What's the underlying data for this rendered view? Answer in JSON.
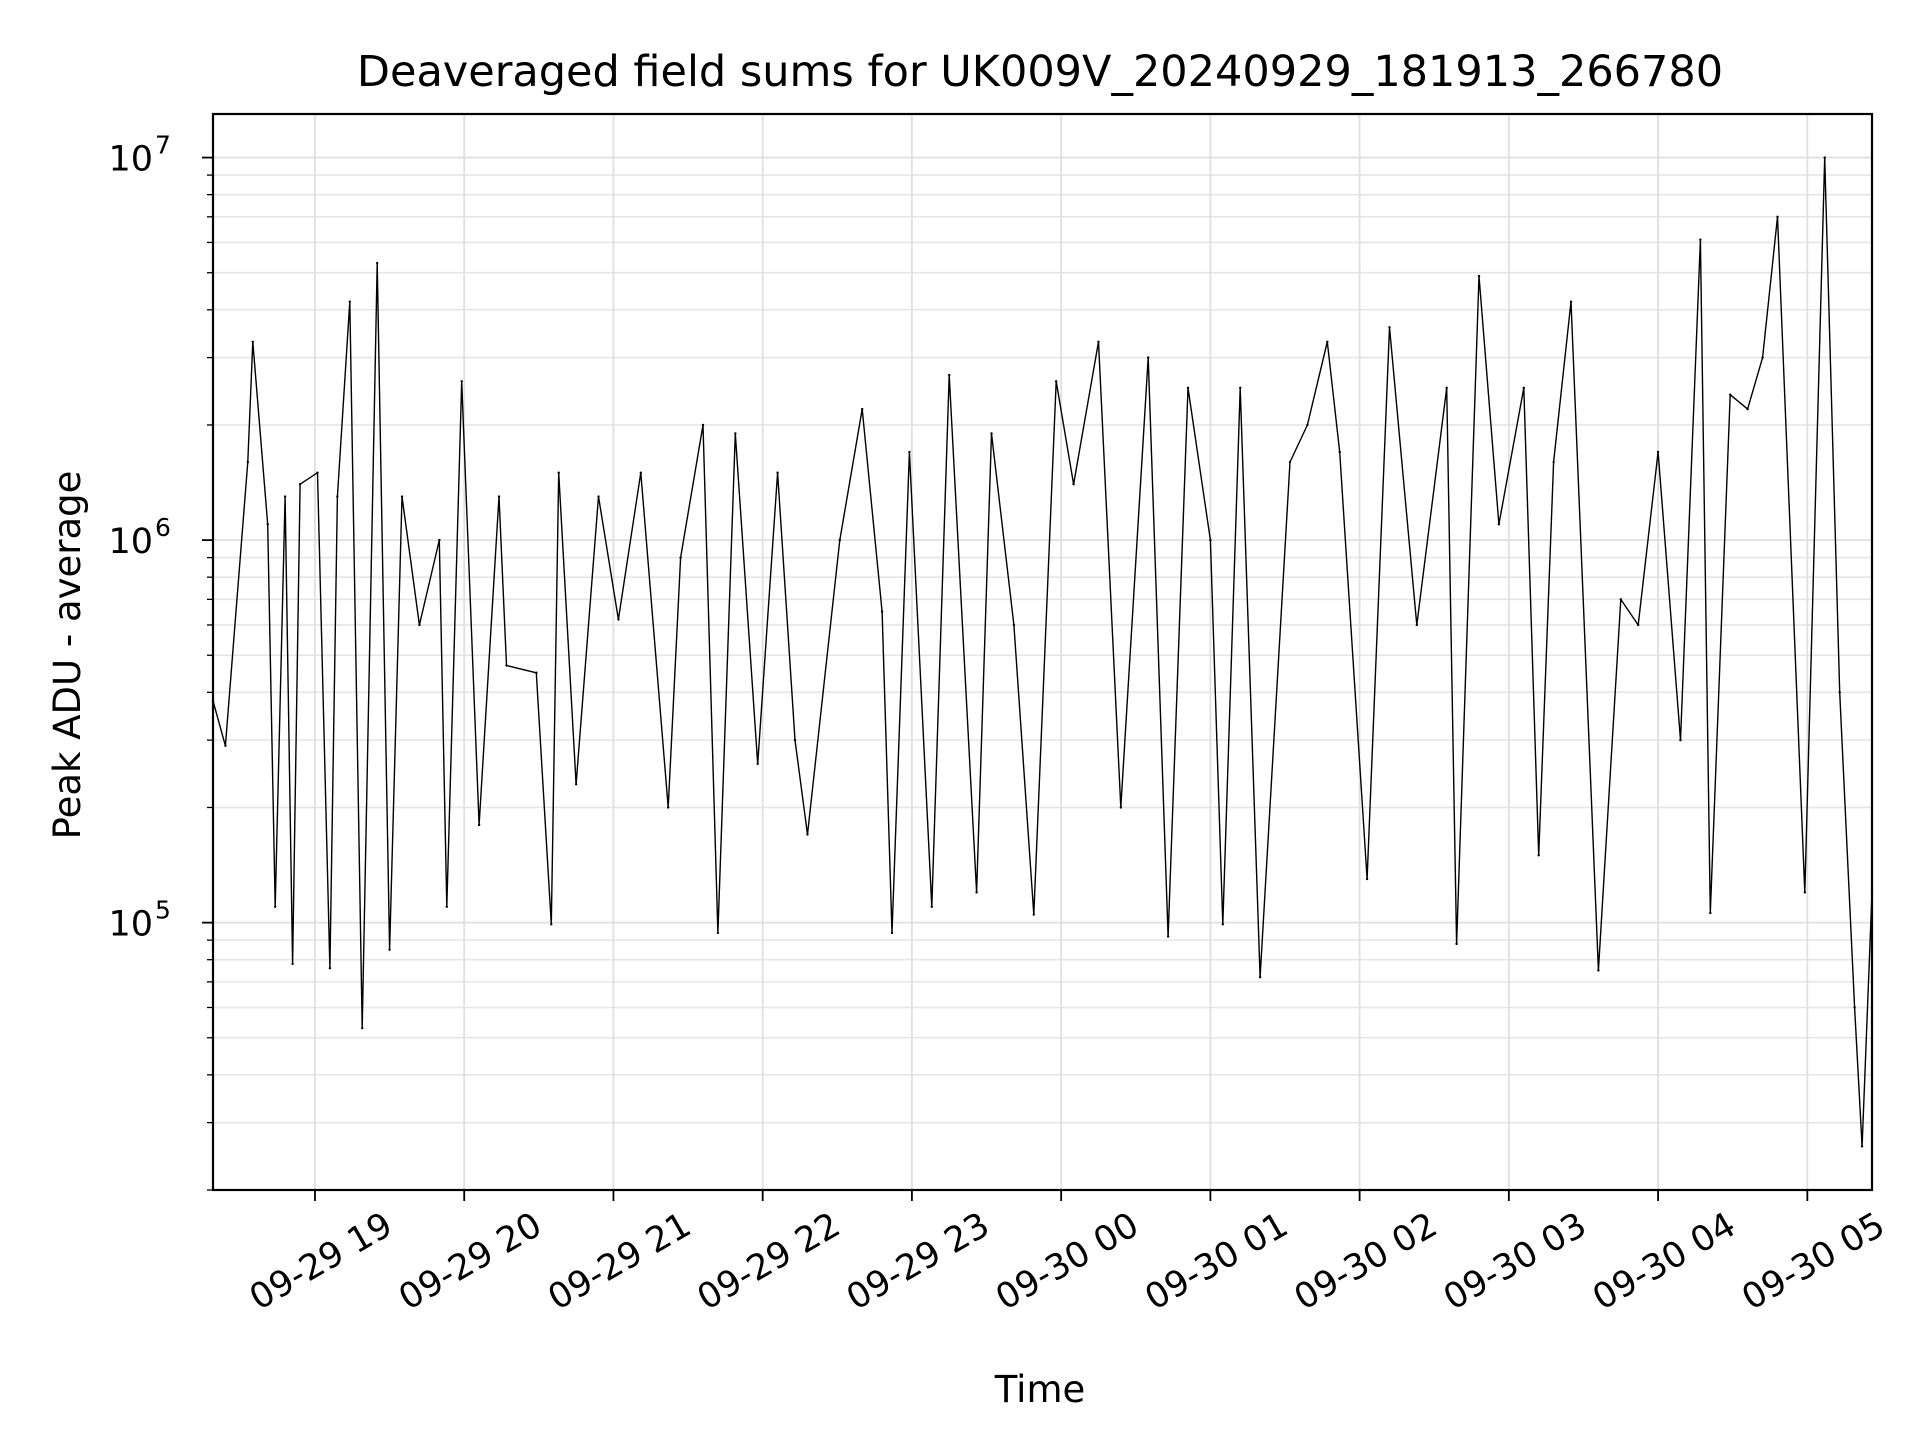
{
  "chart_data": {
    "type": "line",
    "title": "Deaveraged field sums for UK009V_20240929_181913_266780",
    "xlabel": "Time",
    "ylabel": "Peak ADU - average",
    "x_scale": "time",
    "y_scale": "log",
    "xlim": [
      "2024-09-29 18:19",
      "2024-09-30 05:26"
    ],
    "ylim": [
      20000,
      13000000
    ],
    "x_ticks": [
      "2024-09-29 19:00",
      "2024-09-29 20:00",
      "2024-09-29 21:00",
      "2024-09-29 22:00",
      "2024-09-29 23:00",
      "2024-09-30 00:00",
      "2024-09-30 01:00",
      "2024-09-30 02:00",
      "2024-09-30 03:00",
      "2024-09-30 04:00",
      "2024-09-30 05:00"
    ],
    "x_tick_labels": [
      "09-29 19",
      "09-29 20",
      "09-29 21",
      "09-29 22",
      "09-29 23",
      "09-30 00",
      "09-30 01",
      "09-30 02",
      "09-30 03",
      "09-30 04",
      "09-30 05"
    ],
    "y_ticks": [
      100000,
      1000000,
      10000000
    ],
    "y_tick_base": "10",
    "y_tick_exponents": [
      "5",
      "6",
      "7"
    ],
    "grid": true,
    "minor_grid": true,
    "line_color": "#000000",
    "series": [
      {
        "x": [
          "2024-09-29 18:19",
          "2024-09-29 18:24",
          "2024-09-29 18:33",
          "2024-09-29 18:35",
          "2024-09-29 18:41",
          "2024-09-29 18:44",
          "2024-09-29 18:48",
          "2024-09-29 18:51",
          "2024-09-29 18:54",
          "2024-09-29 19:01",
          "2024-09-29 19:06",
          "2024-09-29 19:09",
          "2024-09-29 19:14",
          "2024-09-29 19:19",
          "2024-09-29 19:25",
          "2024-09-29 19:30",
          "2024-09-29 19:35",
          "2024-09-29 19:42",
          "2024-09-29 19:50",
          "2024-09-29 19:53",
          "2024-09-29 19:59",
          "2024-09-29 20:06",
          "2024-09-29 20:14",
          "2024-09-29 20:17",
          "2024-09-29 20:29",
          "2024-09-29 20:35",
          "2024-09-29 20:38",
          "2024-09-29 20:45",
          "2024-09-29 20:54",
          "2024-09-29 21:02",
          "2024-09-29 21:11",
          "2024-09-29 21:22",
          "2024-09-29 21:27",
          "2024-09-29 21:36",
          "2024-09-29 21:42",
          "2024-09-29 21:49",
          "2024-09-29 21:58",
          "2024-09-29 22:06",
          "2024-09-29 22:13",
          "2024-09-29 22:18",
          "2024-09-29 22:31",
          "2024-09-29 22:40",
          "2024-09-29 22:48",
          "2024-09-29 22:52",
          "2024-09-29 22:59",
          "2024-09-29 23:08",
          "2024-09-29 23:15",
          "2024-09-29 23:26",
          "2024-09-29 23:32",
          "2024-09-29 23:41",
          "2024-09-29 23:49",
          "2024-09-29 23:58",
          "2024-09-30 00:05",
          "2024-09-30 00:15",
          "2024-09-30 00:24",
          "2024-09-30 00:35",
          "2024-09-30 00:43",
          "2024-09-30 00:51",
          "2024-09-30 01:00",
          "2024-09-30 01:05",
          "2024-09-30 01:12",
          "2024-09-30 01:20",
          "2024-09-30 01:32",
          "2024-09-30 01:39",
          "2024-09-30 01:47",
          "2024-09-30 01:52",
          "2024-09-30 02:03",
          "2024-09-30 02:12",
          "2024-09-30 02:23",
          "2024-09-30 02:35",
          "2024-09-30 02:39",
          "2024-09-30 02:48",
          "2024-09-30 02:56",
          "2024-09-30 03:06",
          "2024-09-30 03:12",
          "2024-09-30 03:18",
          "2024-09-30 03:25",
          "2024-09-30 03:36",
          "2024-09-30 03:45",
          "2024-09-30 03:52",
          "2024-09-30 04:00",
          "2024-09-30 04:09",
          "2024-09-30 04:17",
          "2024-09-30 04:21",
          "2024-09-30 04:29",
          "2024-09-30 04:36",
          "2024-09-30 04:42",
          "2024-09-30 04:48",
          "2024-09-30 04:59",
          "2024-09-30 05:07",
          "2024-09-30 05:13",
          "2024-09-30 05:19",
          "2024-09-30 05:22",
          "2024-09-30 05:26"
        ],
        "y": [
          380000,
          290000,
          1600000,
          3300000,
          1100000,
          110000,
          1300000,
          78000,
          1400000,
          1500000,
          76000,
          1300000,
          4200000,
          53000,
          5300000,
          85000,
          1300000,
          600000,
          1000000,
          110000,
          2600000,
          180000,
          1300000,
          470000,
          450000,
          99000,
          1500000,
          230000,
          1300000,
          620000,
          1500000,
          200000,
          900000,
          2000000,
          94000,
          1900000,
          260000,
          1500000,
          300000,
          170000,
          1000000,
          2200000,
          650000,
          94000,
          1700000,
          110000,
          2700000,
          120000,
          1900000,
          600000,
          105000,
          2600000,
          1400000,
          3300000,
          200000,
          3000000,
          92000,
          2500000,
          1000000,
          99000,
          2500000,
          72000,
          1600000,
          2000000,
          3300000,
          1700000,
          130000,
          3600000,
          600000,
          2500000,
          88000,
          4900000,
          1100000,
          2500000,
          150000,
          1600000,
          4200000,
          75000,
          700000,
          600000,
          1700000,
          300000,
          6100000,
          106000,
          2400000,
          2200000,
          3000000,
          7000000,
          120000,
          10000000,
          400000,
          60000,
          26000,
          120000
        ]
      }
    ]
  }
}
